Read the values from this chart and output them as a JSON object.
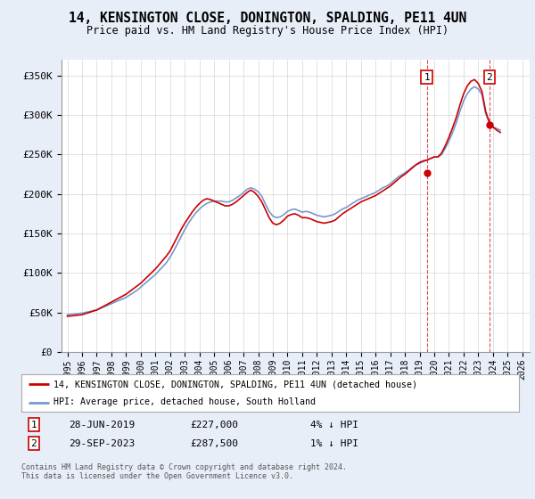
{
  "title": "14, KENSINGTON CLOSE, DONINGTON, SPALDING, PE11 4UN",
  "subtitle": "Price paid vs. HM Land Registry's House Price Index (HPI)",
  "ylabel_ticks": [
    "£0",
    "£50K",
    "£100K",
    "£150K",
    "£200K",
    "£250K",
    "£300K",
    "£350K"
  ],
  "ytick_values": [
    0,
    50000,
    100000,
    150000,
    200000,
    250000,
    300000,
    350000
  ],
  "ylim": [
    0,
    370000
  ],
  "xlim_start": 1994.6,
  "xlim_end": 2026.5,
  "background_color": "#e8eef8",
  "plot_bg_color": "#ffffff",
  "hpi_color": "#7799cc",
  "price_color": "#cc0000",
  "sale1_date": "28-JUN-2019",
  "sale1_price": 227000,
  "sale1_label": "4% ↓ HPI",
  "sale2_date": "29-SEP-2023",
  "sale2_price": 287500,
  "sale2_label": "1% ↓ HPI",
  "sale1_x": 2019.49,
  "sale2_x": 2023.75,
  "legend_line1": "14, KENSINGTON CLOSE, DONINGTON, SPALDING, PE11 4UN (detached house)",
  "legend_line2": "HPI: Average price, detached house, South Holland",
  "footnote": "Contains HM Land Registry data © Crown copyright and database right 2024.\nThis data is licensed under the Open Government Licence v3.0.",
  "hpi_data_x": [
    1995.0,
    1995.25,
    1995.5,
    1995.75,
    1996.0,
    1996.25,
    1996.5,
    1996.75,
    1997.0,
    1997.25,
    1997.5,
    1997.75,
    1998.0,
    1998.25,
    1998.5,
    1998.75,
    1999.0,
    1999.25,
    1999.5,
    1999.75,
    2000.0,
    2000.25,
    2000.5,
    2000.75,
    2001.0,
    2001.25,
    2001.5,
    2001.75,
    2002.0,
    2002.25,
    2002.5,
    2002.75,
    2003.0,
    2003.25,
    2003.5,
    2003.75,
    2004.0,
    2004.25,
    2004.5,
    2004.75,
    2005.0,
    2005.25,
    2005.5,
    2005.75,
    2006.0,
    2006.25,
    2006.5,
    2006.75,
    2007.0,
    2007.25,
    2007.5,
    2007.75,
    2008.0,
    2008.25,
    2008.5,
    2008.75,
    2009.0,
    2009.25,
    2009.5,
    2009.75,
    2010.0,
    2010.25,
    2010.5,
    2010.75,
    2011.0,
    2011.25,
    2011.5,
    2011.75,
    2012.0,
    2012.25,
    2012.5,
    2012.75,
    2013.0,
    2013.25,
    2013.5,
    2013.75,
    2014.0,
    2014.25,
    2014.5,
    2014.75,
    2015.0,
    2015.25,
    2015.5,
    2015.75,
    2016.0,
    2016.25,
    2016.5,
    2016.75,
    2017.0,
    2017.25,
    2017.5,
    2017.75,
    2018.0,
    2018.25,
    2018.5,
    2018.75,
    2019.0,
    2019.25,
    2019.5,
    2019.75,
    2020.0,
    2020.25,
    2020.5,
    2020.75,
    2021.0,
    2021.25,
    2021.5,
    2021.75,
    2022.0,
    2022.25,
    2022.5,
    2022.75,
    2023.0,
    2023.25,
    2023.5,
    2023.75,
    2024.0,
    2024.25,
    2024.5
  ],
  "hpi_data_y": [
    47000,
    47500,
    48000,
    48500,
    49000,
    50000,
    51000,
    52000,
    53000,
    55000,
    57000,
    59000,
    61000,
    63000,
    65000,
    67000,
    69000,
    72000,
    75000,
    78000,
    82000,
    86000,
    90000,
    94000,
    98000,
    103000,
    108000,
    113000,
    120000,
    128000,
    137000,
    146000,
    155000,
    163000,
    170000,
    176000,
    181000,
    185000,
    188000,
    190000,
    191000,
    191000,
    191000,
    190000,
    190000,
    192000,
    195000,
    198000,
    202000,
    206000,
    208000,
    206000,
    203000,
    197000,
    187000,
    178000,
    172000,
    170000,
    171000,
    174000,
    178000,
    180000,
    181000,
    179000,
    177000,
    178000,
    177000,
    175000,
    173000,
    172000,
    171000,
    172000,
    173000,
    175000,
    178000,
    181000,
    183000,
    186000,
    189000,
    192000,
    194000,
    196000,
    198000,
    200000,
    202000,
    205000,
    208000,
    210000,
    213000,
    217000,
    221000,
    224000,
    227000,
    230000,
    234000,
    237000,
    239000,
    241000,
    243000,
    245000,
    247000,
    247000,
    250000,
    258000,
    267000,
    278000,
    290000,
    305000,
    318000,
    327000,
    333000,
    336000,
    333000,
    326000,
    302000,
    291000,
    285000,
    283000,
    281000
  ],
  "price_data_x": [
    1995.0,
    1995.25,
    1995.5,
    1995.75,
    1996.0,
    1996.25,
    1996.5,
    1996.75,
    1997.0,
    1997.25,
    1997.5,
    1997.75,
    1998.0,
    1998.25,
    1998.5,
    1998.75,
    1999.0,
    1999.25,
    1999.5,
    1999.75,
    2000.0,
    2000.25,
    2000.5,
    2000.75,
    2001.0,
    2001.25,
    2001.5,
    2001.75,
    2002.0,
    2002.25,
    2002.5,
    2002.75,
    2003.0,
    2003.25,
    2003.5,
    2003.75,
    2004.0,
    2004.25,
    2004.5,
    2004.75,
    2005.0,
    2005.25,
    2005.5,
    2005.75,
    2006.0,
    2006.25,
    2006.5,
    2006.75,
    2007.0,
    2007.25,
    2007.5,
    2007.75,
    2008.0,
    2008.25,
    2008.5,
    2008.75,
    2009.0,
    2009.25,
    2009.5,
    2009.75,
    2010.0,
    2010.25,
    2010.5,
    2010.75,
    2011.0,
    2011.25,
    2011.5,
    2011.75,
    2012.0,
    2012.25,
    2012.5,
    2012.75,
    2013.0,
    2013.25,
    2013.5,
    2013.75,
    2014.0,
    2014.25,
    2014.5,
    2014.75,
    2015.0,
    2015.25,
    2015.5,
    2015.75,
    2016.0,
    2016.25,
    2016.5,
    2016.75,
    2017.0,
    2017.25,
    2017.5,
    2017.75,
    2018.0,
    2018.25,
    2018.5,
    2018.75,
    2019.0,
    2019.25,
    2019.5,
    2019.75,
    2020.0,
    2020.25,
    2020.5,
    2020.75,
    2021.0,
    2021.25,
    2021.5,
    2021.75,
    2022.0,
    2022.25,
    2022.5,
    2022.75,
    2023.0,
    2023.25,
    2023.5,
    2023.75,
    2024.0,
    2024.25,
    2024.5
  ],
  "price_data_y": [
    45000,
    45500,
    46000,
    46500,
    47000,
    48500,
    50000,
    51500,
    53000,
    55500,
    58000,
    60500,
    63000,
    65500,
    68000,
    70500,
    73000,
    76500,
    80000,
    83500,
    87000,
    91500,
    96000,
    100500,
    105000,
    110500,
    116000,
    121500,
    128000,
    137000,
    146000,
    155000,
    163000,
    170000,
    177000,
    183000,
    188000,
    192000,
    194000,
    193000,
    191000,
    189000,
    187000,
    185000,
    185000,
    187000,
    190000,
    194000,
    198000,
    202000,
    205000,
    202000,
    197000,
    190000,
    180000,
    170000,
    163000,
    161000,
    163000,
    167000,
    172000,
    174000,
    175000,
    173000,
    170000,
    170000,
    169000,
    167000,
    165000,
    164000,
    163000,
    164000,
    165000,
    167000,
    171000,
    175000,
    178000,
    181000,
    184000,
    187000,
    190000,
    192000,
    194000,
    196000,
    198000,
    201000,
    204000,
    207000,
    210000,
    214000,
    218000,
    222000,
    225000,
    229000,
    233000,
    237000,
    240000,
    242000,
    243000,
    245000,
    247000,
    247000,
    252000,
    261000,
    272000,
    284000,
    297000,
    313000,
    327000,
    337000,
    343000,
    345000,
    340000,
    330000,
    305000,
    291000,
    285000,
    281000,
    278000
  ]
}
